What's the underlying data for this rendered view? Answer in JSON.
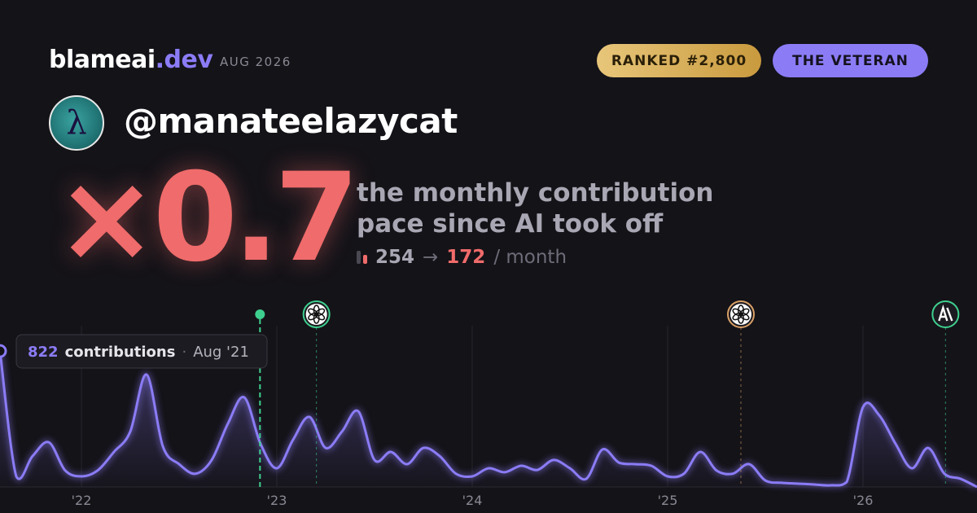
{
  "header": {
    "brand": "blameai",
    "brand_tld": ".dev",
    "date": "AUG 2026",
    "rank_badge": "RANKED #2,800",
    "title_badge": "THE VETERAN"
  },
  "user": {
    "handle": "@manateelazycat"
  },
  "headline": {
    "multiplier": "×0.7",
    "description": [
      "the monthly contribution",
      "pace since AI took off"
    ],
    "before": 254,
    "arrow": "→",
    "after": 172,
    "unit": "/ month"
  },
  "chart_data": {
    "type": "line",
    "x": [
      "2021-08",
      "2021-09",
      "2021-10",
      "2021-11",
      "2021-12",
      "2022-01",
      "2022-02",
      "2022-03",
      "2022-04",
      "2022-05",
      "2022-06",
      "2022-07",
      "2022-08",
      "2022-09",
      "2022-10",
      "2022-11",
      "2022-12",
      "2023-01",
      "2023-02",
      "2023-03",
      "2023-04",
      "2023-05",
      "2023-06",
      "2023-07",
      "2023-08",
      "2023-09",
      "2023-10",
      "2023-11",
      "2023-12",
      "2024-01",
      "2024-02",
      "2024-03",
      "2024-04",
      "2024-05",
      "2024-06",
      "2024-07",
      "2024-08",
      "2024-09",
      "2024-10",
      "2024-11",
      "2024-12",
      "2025-01",
      "2025-02",
      "2025-03",
      "2025-04",
      "2025-05",
      "2025-06",
      "2025-07",
      "2025-08",
      "2025-09",
      "2025-10",
      "2025-11",
      "2025-12",
      "2026-01",
      "2026-02",
      "2026-03",
      "2026-04",
      "2026-05",
      "2026-06",
      "2026-07",
      "2026-08"
    ],
    "series": [
      {
        "name": "contributions",
        "color": "#8b7cf6",
        "values": [
          822,
          64,
          187,
          270,
          100,
          64,
          100,
          212,
          335,
          680,
          246,
          138,
          80,
          163,
          384,
          542,
          261,
          113,
          286,
          424,
          236,
          335,
          458,
          163,
          212,
          138,
          236,
          187,
          80,
          64,
          113,
          89,
          128,
          103,
          163,
          113,
          49,
          227,
          148,
          138,
          128,
          64,
          80,
          212,
          100,
          80,
          138,
          39,
          25,
          20,
          15,
          10,
          30,
          483,
          433,
          261,
          113,
          236,
          80,
          49,
          0
        ]
      }
    ],
    "ylim": [
      0,
      1000
    ],
    "xticks": [
      {
        "value": "2022-01",
        "label": "'22"
      },
      {
        "value": "2023-01",
        "label": "'23"
      },
      {
        "value": "2024-01",
        "label": "'24"
      },
      {
        "value": "2025-01",
        "label": "'25"
      },
      {
        "value": "2026-01",
        "label": "'26"
      }
    ],
    "grid": true,
    "tooltip": {
      "label": "contributions",
      "date": "Aug '21"
    },
    "events": [
      {
        "x": "2022-11-30",
        "kind": "launch",
        "color": "#3ecf8e"
      },
      {
        "x": "2023-03-14",
        "kind": "openai",
        "color": "#3ecf8e"
      },
      {
        "x": "2025-05-16",
        "kind": "openai",
        "color": "#d9a066"
      },
      {
        "x": "2026-06-03",
        "kind": "anthropic",
        "color": "#3ecf8e"
      }
    ]
  }
}
